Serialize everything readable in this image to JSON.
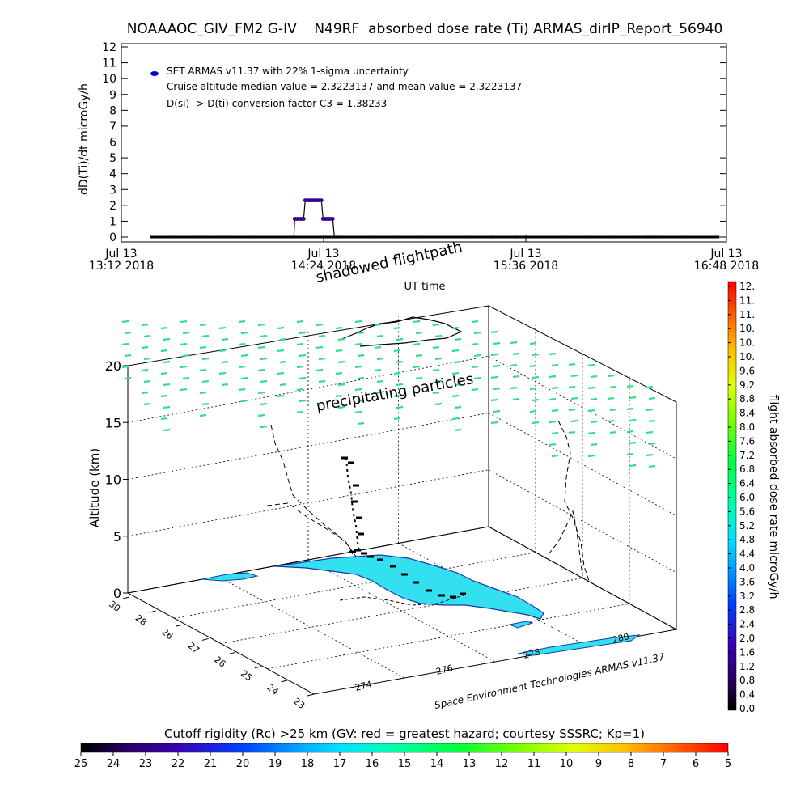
{
  "title": "NOAAAOC_GIV_FM2 G-IV    N49RF  absorbed dose rate (Ti) ARMAS_dirIP_Report_56940",
  "chart_data": [
    {
      "type": "line",
      "ylabel": "dD(Ti)/dt microGy/h",
      "xlabel": "UT time",
      "ylim": [
        0,
        12
      ],
      "yticks": [
        "0",
        "1",
        "2",
        "3",
        "4",
        "5",
        "6",
        "7",
        "8",
        "9",
        "10",
        "11",
        "12"
      ],
      "xticks": [
        {
          "line1": "Jul 13",
          "line2": "13:12 2018"
        },
        {
          "line1": "Jul 13",
          "line2": "14:24 2018"
        },
        {
          "line1": "Jul 13",
          "line2": "15:36 2018"
        },
        {
          "line1": "Jul 13",
          "line2": "16:48 2018"
        }
      ],
      "x_minutes": [
        0,
        240
      ],
      "legend": {
        "marker_color": "#0000cc",
        "lines": [
          "SET ARMAS v11.37 with 22% 1-sigma uncertainty",
          "Cruise altitude median value = 2.3223137 and mean value = 2.3223137",
          "D(si) -> D(ti) conversion factor C3 = 1.38233"
        ]
      },
      "series": [
        {
          "x": [
            0,
            30,
            60,
            90,
            120,
            150,
            175,
            176,
            177,
            178,
            180,
            182,
            184,
            186,
            188,
            190,
            192,
            194,
            196,
            198,
            200,
            202,
            204,
            206,
            208,
            210,
            212,
            214,
            216,
            218,
            220,
            222,
            224,
            226,
            228,
            229,
            230,
            232,
            250,
            270,
            300,
            330,
            360,
            390,
            420,
            450,
            480,
            510,
            540,
            570,
            600,
            610,
            612,
            614,
            616,
            618,
            620,
            630,
            660,
            700
          ],
          "y": [
            0,
            0,
            0,
            0,
            0,
            0,
            0,
            0,
            1.15,
            1.15,
            1.15,
            1.15,
            1.15,
            1.15,
            1.15,
            2.32,
            2.32,
            2.32,
            2.32,
            2.32,
            2.32,
            2.32,
            2.32,
            2.32,
            2.32,
            2.32,
            1.15,
            1.15,
            1.15,
            1.15,
            1.15,
            1.15,
            1.15,
            0,
            0,
            0,
            0,
            0,
            0,
            0,
            0,
            0,
            0,
            0,
            0,
            0,
            0,
            0,
            0,
            0,
            0,
            0,
            0,
            0,
            0,
            0,
            0,
            0,
            0,
            0
          ]
        }
      ]
    },
    {
      "type": "scatter",
      "zlabel": "Altitude (km)",
      "zticks": [
        "0",
        "5",
        "10",
        "15",
        "20"
      ],
      "lat_ticks": [
        "30",
        "28",
        "26",
        "27",
        "26",
        "25",
        "24",
        "23"
      ],
      "lon_ticks": [
        "274",
        "276",
        "278",
        "280"
      ],
      "annotations": [
        "shadowed flightpath",
        "precipitating particles"
      ],
      "credit": "Space Environment Technologies ARMAS v11.37"
    }
  ],
  "colorbar_right": {
    "label": "flight absorbed dose rate microGy/h",
    "ticks": [
      "12.",
      "11.",
      "11.",
      "10.",
      "10.",
      "10.",
      "9.6",
      "9.2",
      "8.8",
      "8.4",
      "8.0",
      "7.6",
      "7.2",
      "6.8",
      "6.4",
      "6.0",
      "5.6",
      "5.2",
      "4.8",
      "4.4",
      "4.0",
      "3.6",
      "3.2",
      "2.8",
      "2.4",
      "2.0",
      "1.6",
      "1.2",
      "0.8",
      "0.4",
      "0.0"
    ]
  },
  "colorbar_bottom": {
    "label": "Cutoff rigidity (Rc) >25 km (GV: red = greatest hazard; courtesy SSSRC; Kp=1)",
    "ticks": [
      "25",
      "24",
      "23",
      "22",
      "21",
      "20",
      "19",
      "18",
      "17",
      "16",
      "15",
      "14",
      "13",
      "12",
      "11",
      "10",
      "9",
      "8",
      "7",
      "6",
      "5"
    ]
  },
  "colors": {
    "particles": "#33e08a",
    "land": "#33e0f0",
    "coast": "#1a3aa8",
    "flightpath": "#000000"
  }
}
